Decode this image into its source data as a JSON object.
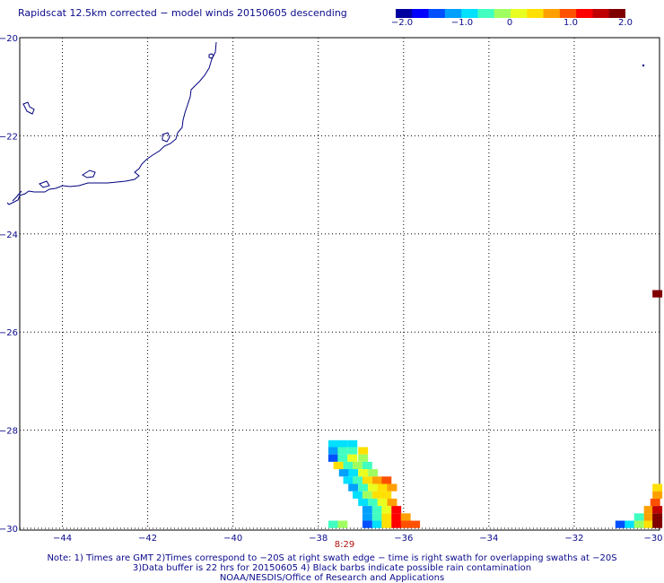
{
  "title": "Rapidscat 12.5km corrected − model winds 20150605 descending",
  "colorbar": {
    "ticks": [
      "−2.0",
      "−1.0",
      "0",
      "1.0",
      "2.0"
    ],
    "colors": [
      "#0000a0",
      "#0000ff",
      "#0050ff",
      "#00a0ff",
      "#00e0ff",
      "#40ffc0",
      "#a0ff60",
      "#e8ff20",
      "#ffe000",
      "#ffa000",
      "#ff5000",
      "#ff0000",
      "#c00000",
      "#800000"
    ]
  },
  "map": {
    "lat_labels": [
      "−20",
      "−22",
      "−24",
      "−26",
      "−28",
      "−30"
    ],
    "lon_labels": [
      "−44",
      "−42",
      "−40",
      "−38",
      "−36",
      "−34",
      "−32",
      "−30"
    ],
    "lat_range": [
      -30,
      -20
    ],
    "lon_range": [
      -45,
      -30
    ],
    "coastline_color": "#000080",
    "grid": "dotted",
    "swath_time_label": "8:29"
  },
  "chart_data": {
    "type": "heatmap",
    "title": "Rapidscat 12.5km corrected − model winds 20150605 descending",
    "xlabel": "",
    "ylabel": "",
    "xlim": [
      -45,
      -30
    ],
    "ylim": [
      -30,
      -20
    ],
    "value_range": [
      -2.0,
      2.0
    ],
    "cells": [
      {
        "lon": -37.65,
        "lat": -28.28,
        "v": -0.6
      },
      {
        "lon": -37.43,
        "lat": -28.28,
        "v": -0.6
      },
      {
        "lon": -37.2,
        "lat": -28.28,
        "v": -0.8
      },
      {
        "lon": -37.65,
        "lat": -28.42,
        "v": -1.0
      },
      {
        "lon": -37.43,
        "lat": -28.42,
        "v": -0.5
      },
      {
        "lon": -37.2,
        "lat": -28.42,
        "v": -0.3
      },
      {
        "lon": -36.95,
        "lat": -28.42,
        "v": 0.4
      },
      {
        "lon": -37.65,
        "lat": -28.57,
        "v": -1.4
      },
      {
        "lon": -37.43,
        "lat": -28.57,
        "v": -0.4
      },
      {
        "lon": -37.2,
        "lat": -28.57,
        "v": 0.2
      },
      {
        "lon": -36.95,
        "lat": -28.57,
        "v": -0.2
      },
      {
        "lon": -37.53,
        "lat": -28.72,
        "v": 0.4
      },
      {
        "lon": -37.3,
        "lat": -28.72,
        "v": -0.3
      },
      {
        "lon": -37.08,
        "lat": -28.72,
        "v": -0.2
      },
      {
        "lon": -36.85,
        "lat": -28.72,
        "v": -0.5
      },
      {
        "lon": -37.4,
        "lat": -28.87,
        "v": -0.9
      },
      {
        "lon": -37.18,
        "lat": -28.87,
        "v": -0.7
      },
      {
        "lon": -36.95,
        "lat": -28.87,
        "v": 0.2
      },
      {
        "lon": -36.72,
        "lat": -28.87,
        "v": -0.1
      },
      {
        "lon": -37.3,
        "lat": -29.02,
        "v": -0.8
      },
      {
        "lon": -37.08,
        "lat": -29.02,
        "v": -0.3
      },
      {
        "lon": -36.85,
        "lat": -29.02,
        "v": 0.3
      },
      {
        "lon": -36.62,
        "lat": -29.02,
        "v": 0.6
      },
      {
        "lon": -36.4,
        "lat": -29.02,
        "v": 0.9
      },
      {
        "lon": -37.18,
        "lat": -29.17,
        "v": -0.9
      },
      {
        "lon": -36.95,
        "lat": -29.17,
        "v": -0.5
      },
      {
        "lon": -36.72,
        "lat": -29.17,
        "v": 0.2
      },
      {
        "lon": -36.5,
        "lat": -29.17,
        "v": 0.5
      },
      {
        "lon": -36.27,
        "lat": -29.17,
        "v": 0.7
      },
      {
        "lon": -37.08,
        "lat": -29.32,
        "v": -0.6
      },
      {
        "lon": -36.85,
        "lat": -29.32,
        "v": -0.2
      },
      {
        "lon": -36.62,
        "lat": -29.32,
        "v": 0.3
      },
      {
        "lon": -36.4,
        "lat": -29.32,
        "v": 0.4
      },
      {
        "lon": -36.95,
        "lat": -29.47,
        "v": -0.8
      },
      {
        "lon": -36.72,
        "lat": -29.47,
        "v": -0.3
      },
      {
        "lon": -36.5,
        "lat": -29.47,
        "v": 0.2
      },
      {
        "lon": -36.27,
        "lat": -29.47,
        "v": 0.8
      },
      {
        "lon": -36.85,
        "lat": -29.62,
        "v": -0.9
      },
      {
        "lon": -36.62,
        "lat": -29.62,
        "v": -0.4
      },
      {
        "lon": -36.4,
        "lat": -29.62,
        "v": 0.2
      },
      {
        "lon": -36.17,
        "lat": -29.62,
        "v": 1.2
      },
      {
        "lon": -36.85,
        "lat": -29.77,
        "v": -1.0
      },
      {
        "lon": -36.62,
        "lat": -29.77,
        "v": -0.5
      },
      {
        "lon": -36.4,
        "lat": -29.77,
        "v": 0.4
      },
      {
        "lon": -36.17,
        "lat": -29.77,
        "v": 1.4
      },
      {
        "lon": -35.95,
        "lat": -29.77,
        "v": 0.8
      },
      {
        "lon": -37.65,
        "lat": -29.92,
        "v": -0.5
      },
      {
        "lon": -37.43,
        "lat": -29.92,
        "v": -0.1
      },
      {
        "lon": -36.85,
        "lat": -29.92,
        "v": -1.4
      },
      {
        "lon": -36.62,
        "lat": -29.92,
        "v": -0.8
      },
      {
        "lon": -36.4,
        "lat": -29.92,
        "v": 0.3
      },
      {
        "lon": -36.17,
        "lat": -29.92,
        "v": 1.2
      },
      {
        "lon": -35.95,
        "lat": -29.92,
        "v": 0.9
      },
      {
        "lon": -35.73,
        "lat": -29.92,
        "v": 0.9
      },
      {
        "lon": -30.92,
        "lat": -29.92,
        "v": -1.2
      },
      {
        "lon": -30.7,
        "lat": -29.92,
        "v": -0.7
      },
      {
        "lon": -30.48,
        "lat": -29.92,
        "v": -0.2
      },
      {
        "lon": -30.25,
        "lat": -29.92,
        "v": 0.5
      },
      {
        "lon": -30.05,
        "lat": -29.92,
        "v": 1.9
      },
      {
        "lon": -30.48,
        "lat": -29.77,
        "v": -0.3
      },
      {
        "lon": -30.25,
        "lat": -29.77,
        "v": 0.6
      },
      {
        "lon": -30.05,
        "lat": -29.77,
        "v": 1.9
      },
      {
        "lon": -30.25,
        "lat": -29.62,
        "v": 0.7
      },
      {
        "lon": -30.05,
        "lat": -29.62,
        "v": 1.6
      },
      {
        "lon": -30.1,
        "lat": -29.47,
        "v": 0.9
      },
      {
        "lon": -30.05,
        "lat": -29.32,
        "v": 0.6
      },
      {
        "lon": -30.05,
        "lat": -29.17,
        "v": 0.4
      },
      {
        "lon": -30.05,
        "lat": -25.22,
        "v": 2.0
      }
    ]
  },
  "notes": [
    "Note: 1) Times are GMT 2)Times correspond to −20S at right swath edge − time is right swath for overlapping swaths at −20S",
    "3)Data buffer is 22 hrs for 20150605 4) Black barbs indicate possible rain contamination",
    "NOAA/NESDIS/Office of Research and Applications"
  ]
}
